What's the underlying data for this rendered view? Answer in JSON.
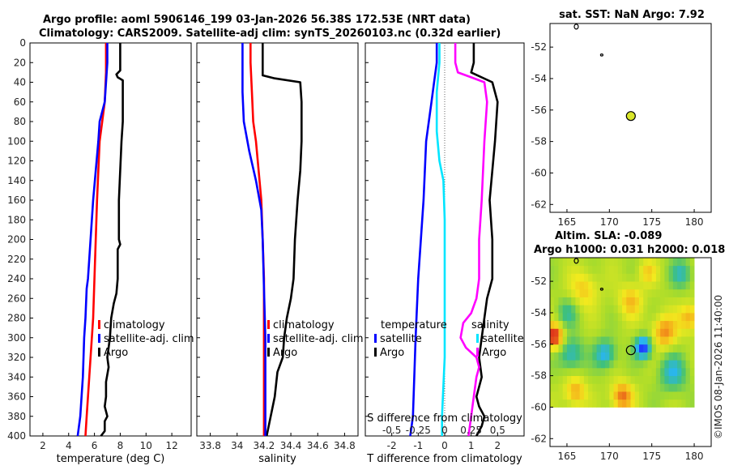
{
  "figure": {
    "title_line1": "Argo profile: aoml 5906146_199 03-Jan-2026 56.38S 172.53E (NRT data)",
    "title_line2": "Climatology: CARS2009. Satellite-adj clim: synTS_20260103.nc (0.32d earlier)",
    "footer_vertical": "©IMOS 08-Jan-2026 11:40:00"
  },
  "colors": {
    "argo": "#000000",
    "climatology": "#ff0000",
    "satellite": "#0000ff",
    "cyan": "#00e5ff",
    "magenta": "#ff00ff",
    "zero_line": "#666666"
  },
  "chart_data": [
    {
      "id": "temperature",
      "type": "line",
      "xlabel": "temperature (deg C)",
      "ylabel": "",
      "xlim": [
        1,
        13.5
      ],
      "ylim": [
        0,
        400
      ],
      "xticks": [
        2,
        4,
        6,
        8,
        10,
        12
      ],
      "yticks": [
        0,
        20,
        40,
        60,
        80,
        100,
        120,
        140,
        160,
        180,
        200,
        220,
        240,
        260,
        280,
        300,
        320,
        340,
        360,
        380,
        400
      ],
      "legend": {
        "location": "center-right",
        "entries": [
          "climatology",
          "satellite-adj. clim",
          "Argo"
        ]
      },
      "series": [
        {
          "name": "Argo",
          "color": "#000000",
          "points": [
            [
              8.0,
              0
            ],
            [
              8.0,
              10
            ],
            [
              8.0,
              20
            ],
            [
              8.0,
              28
            ],
            [
              7.7,
              32
            ],
            [
              7.8,
              35
            ],
            [
              8.2,
              38
            ],
            [
              8.2,
              50
            ],
            [
              8.2,
              80
            ],
            [
              8.1,
              100
            ],
            [
              8.0,
              130
            ],
            [
              7.9,
              160
            ],
            [
              7.9,
              200
            ],
            [
              8.0,
              205
            ],
            [
              7.8,
              210
            ],
            [
              7.8,
              240
            ],
            [
              7.7,
              255
            ],
            [
              7.5,
              265
            ],
            [
              7.3,
              280
            ],
            [
              7.2,
              300
            ],
            [
              7.1,
              310
            ],
            [
              7.0,
              320
            ],
            [
              7.1,
              330
            ],
            [
              6.9,
              345
            ],
            [
              6.9,
              360
            ],
            [
              6.8,
              370
            ],
            [
              7.0,
              380
            ],
            [
              6.8,
              385
            ],
            [
              6.8,
              395
            ],
            [
              6.5,
              400
            ]
          ]
        },
        {
          "name": "climatology",
          "color": "#ff0000",
          "points": [
            [
              6.9,
              0
            ],
            [
              6.9,
              30
            ],
            [
              6.8,
              60
            ],
            [
              6.6,
              80
            ],
            [
              6.4,
              100
            ],
            [
              6.3,
              130
            ],
            [
              6.2,
              160
            ],
            [
              6.1,
              200
            ],
            [
              6.0,
              240
            ],
            [
              5.9,
              280
            ],
            [
              5.8,
              300
            ],
            [
              5.6,
              340
            ],
            [
              5.4,
              380
            ],
            [
              5.3,
              400
            ]
          ]
        },
        {
          "name": "satellite-adj. clim",
          "color": "#0000ff",
          "points": [
            [
              7.0,
              0
            ],
            [
              7.0,
              20
            ],
            [
              6.9,
              40
            ],
            [
              6.8,
              60
            ],
            [
              6.4,
              80
            ],
            [
              6.3,
              100
            ],
            [
              6.1,
              130
            ],
            [
              5.9,
              160
            ],
            [
              5.7,
              200
            ],
            [
              5.5,
              240
            ],
            [
              5.4,
              250
            ],
            [
              5.3,
              280
            ],
            [
              5.2,
              300
            ],
            [
              5.1,
              340
            ],
            [
              4.9,
              380
            ],
            [
              4.7,
              400
            ]
          ]
        }
      ]
    },
    {
      "id": "salinity",
      "type": "line",
      "xlabel": "salinity",
      "ylabel": "",
      "xlim": [
        33.7,
        34.9
      ],
      "ylim": [
        0,
        400
      ],
      "xticks": [
        33.8,
        34,
        34.2,
        34.4,
        34.6,
        34.8
      ],
      "yticks": [
        0,
        20,
        40,
        60,
        80,
        100,
        120,
        140,
        160,
        180,
        200,
        220,
        240,
        260,
        280,
        300,
        320,
        340,
        360,
        380,
        400
      ],
      "legend": {
        "location": "center-right",
        "entries": [
          "climatology",
          "satellite-adj. clim",
          "Argo"
        ]
      },
      "series": [
        {
          "name": "Argo",
          "color": "#000000",
          "points": [
            [
              34.19,
              0
            ],
            [
              34.19,
              20
            ],
            [
              34.19,
              33
            ],
            [
              34.28,
              36
            ],
            [
              34.47,
              40
            ],
            [
              34.48,
              60
            ],
            [
              34.48,
              100
            ],
            [
              34.47,
              130
            ],
            [
              34.45,
              160
            ],
            [
              34.43,
              200
            ],
            [
              34.42,
              240
            ],
            [
              34.4,
              260
            ],
            [
              34.37,
              280
            ],
            [
              34.35,
              300
            ],
            [
              34.34,
              320
            ],
            [
              34.3,
              335
            ],
            [
              34.28,
              360
            ],
            [
              34.25,
              380
            ],
            [
              34.22,
              400
            ]
          ]
        },
        {
          "name": "climatology",
          "color": "#ff0000",
          "points": [
            [
              34.1,
              0
            ],
            [
              34.1,
              20
            ],
            [
              34.11,
              50
            ],
            [
              34.12,
              80
            ],
            [
              34.14,
              100
            ],
            [
              34.16,
              130
            ],
            [
              34.18,
              160
            ],
            [
              34.19,
              200
            ],
            [
              34.2,
              240
            ],
            [
              34.2,
              300
            ],
            [
              34.2,
              400
            ]
          ]
        },
        {
          "name": "satellite-adj. clim",
          "color": "#0000ff",
          "points": [
            [
              34.04,
              0
            ],
            [
              34.04,
              20
            ],
            [
              34.04,
              50
            ],
            [
              34.05,
              80
            ],
            [
              34.09,
              110
            ],
            [
              34.14,
              140
            ],
            [
              34.18,
              170
            ],
            [
              34.19,
              200
            ],
            [
              34.2,
              250
            ],
            [
              34.21,
              300
            ],
            [
              34.21,
              400
            ]
          ]
        }
      ]
    },
    {
      "id": "difference",
      "type": "line",
      "xlabel": "T difference from climatology",
      "top_label": "S difference from climatology",
      "ylabel": "",
      "xlim": [
        -3,
        3
      ],
      "ylim": [
        0,
        400
      ],
      "xticks": [
        -2,
        -1,
        0,
        1,
        2
      ],
      "top_xticks": [
        "-0.5",
        "-0.25",
        "0",
        "0.25",
        "0.5"
      ],
      "yticks": [
        0,
        20,
        40,
        60,
        80,
        100,
        120,
        140,
        160,
        180,
        200,
        220,
        240,
        260,
        280,
        300,
        320,
        340,
        360,
        380,
        400
      ],
      "legend_left": {
        "title": "temperature",
        "entries": [
          "satellite",
          "Argo"
        ]
      },
      "legend_right": {
        "title": "salinity",
        "entries": [
          "satellite",
          "Argo"
        ]
      },
      "series": [
        {
          "name": "T satellite",
          "color": "#0000ff",
          "points": [
            [
              -0.3,
              0
            ],
            [
              -0.3,
              20
            ],
            [
              -0.4,
              40
            ],
            [
              -0.5,
              60
            ],
            [
              -0.7,
              100
            ],
            [
              -0.8,
              160
            ],
            [
              -1.0,
              240
            ],
            [
              -1.1,
              300
            ],
            [
              -1.2,
              380
            ],
            [
              -1.3,
              400
            ]
          ]
        },
        {
          "name": "T Argo",
          "color": "#000000",
          "points": [
            [
              1.1,
              0
            ],
            [
              1.1,
              20
            ],
            [
              1.0,
              30
            ],
            [
              1.8,
              40
            ],
            [
              2.0,
              60
            ],
            [
              1.9,
              100
            ],
            [
              1.8,
              130
            ],
            [
              1.7,
              160
            ],
            [
              1.8,
              200
            ],
            [
              1.8,
              240
            ],
            [
              1.6,
              260
            ],
            [
              1.5,
              280
            ],
            [
              1.4,
              300
            ],
            [
              1.3,
              320
            ],
            [
              1.4,
              340
            ],
            [
              1.2,
              360
            ],
            [
              1.3,
              370
            ],
            [
              1.5,
              380
            ],
            [
              1.4,
              390
            ],
            [
              1.2,
              400
            ]
          ]
        },
        {
          "name": "S satellite",
          "color": "#00e5ff",
          "points": [
            [
              -0.2,
              0
            ],
            [
              -0.2,
              20
            ],
            [
              -0.3,
              50
            ],
            [
              -0.3,
              90
            ],
            [
              -0.2,
              120
            ],
            [
              -0.05,
              140
            ],
            [
              0.0,
              180
            ],
            [
              0.0,
              240
            ],
            [
              0.0,
              320
            ],
            [
              -0.1,
              380
            ],
            [
              -0.1,
              400
            ]
          ]
        },
        {
          "name": "S Argo",
          "color": "#ff00ff",
          "points": [
            [
              0.4,
              0
            ],
            [
              0.4,
              20
            ],
            [
              0.5,
              30
            ],
            [
              1.0,
              35
            ],
            [
              1.5,
              40
            ],
            [
              1.6,
              60
            ],
            [
              1.5,
              100
            ],
            [
              1.4,
              160
            ],
            [
              1.3,
              200
            ],
            [
              1.3,
              240
            ],
            [
              1.2,
              260
            ],
            [
              1.0,
              275
            ],
            [
              0.7,
              285
            ],
            [
              0.6,
              300
            ],
            [
              0.8,
              310
            ],
            [
              1.2,
              320
            ],
            [
              1.3,
              330
            ],
            [
              1.2,
              340
            ],
            [
              1.1,
              360
            ],
            [
              1.0,
              380
            ],
            [
              0.9,
              400
            ]
          ]
        }
      ]
    },
    {
      "id": "sst_map",
      "type": "scatter",
      "title": "sat. SST: NaN Argo: 7.92",
      "xlabel": "",
      "ylabel": "",
      "xlim": [
        163,
        182
      ],
      "ylim": [
        -62.5,
        -50.5
      ],
      "xticks": [
        165,
        170,
        175,
        180
      ],
      "yticks": [
        -52,
        -54,
        -56,
        -58,
        -60,
        -62
      ],
      "marker": {
        "lon": 172.53,
        "lat": -56.38,
        "color": "#d9e62a"
      },
      "islands": [
        {
          "lon": 166.1,
          "lat": -50.7
        },
        {
          "lon": 169.1,
          "lat": -52.5
        }
      ]
    },
    {
      "id": "sla_map",
      "type": "heatmap",
      "title_line1": "Altim. SLA: -0.089",
      "title_line2": "Argo h1000: 0.031 h2000: 0.018",
      "xlabel": "",
      "ylabel": "",
      "xlim": [
        163,
        182
      ],
      "ylim": [
        -62.5,
        -50.5
      ],
      "data_extent": {
        "lon": [
          163,
          180
        ],
        "lat": [
          -60,
          -50.5
        ]
      },
      "xticks": [
        165,
        170,
        175,
        180
      ],
      "yticks": [
        -52,
        -54,
        -56,
        -58,
        -60,
        -62
      ],
      "marker": {
        "lon": 172.53,
        "lat": -56.38
      },
      "islands": [
        {
          "lon": 166.1,
          "lat": -50.7
        },
        {
          "lon": 169.1,
          "lat": -52.5
        }
      ],
      "colormap": [
        "#1f3cff",
        "#27b4ff",
        "#3fc07a",
        "#a9dc2b",
        "#f2ea1e",
        "#f5a31a",
        "#e0391b"
      ]
    }
  ]
}
